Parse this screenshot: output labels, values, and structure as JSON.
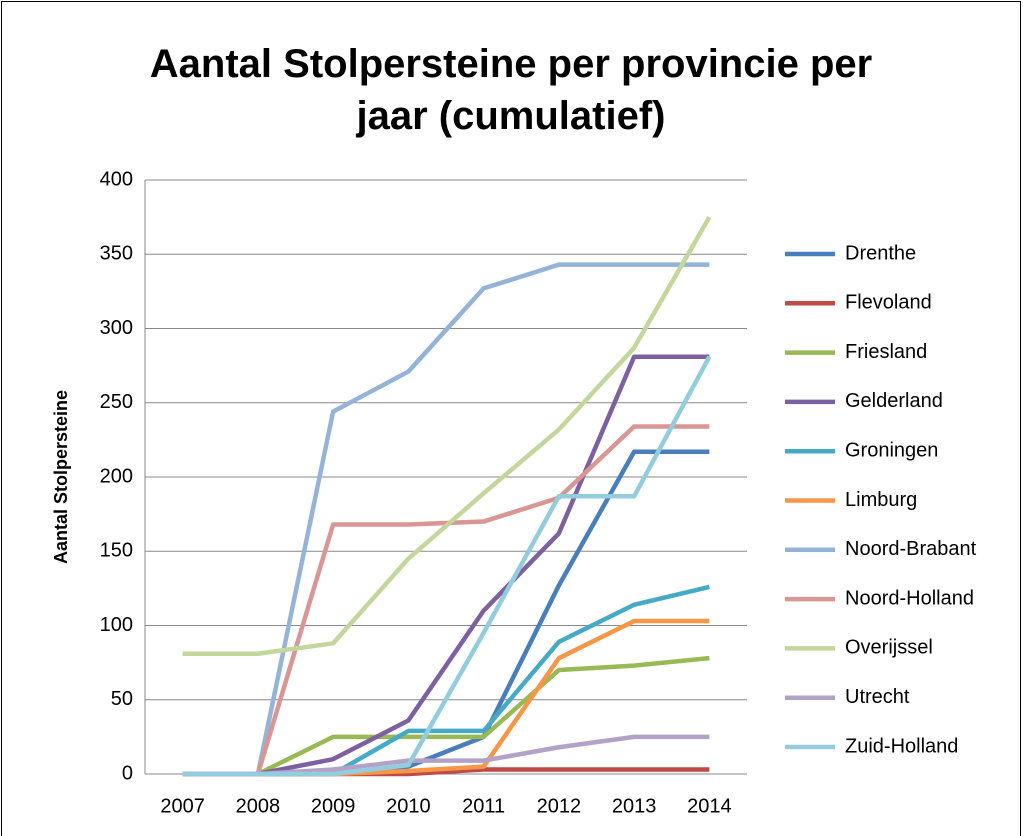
{
  "chart_data": {
    "type": "line",
    "title": "Aantal Stolpersteine per provincie per jaar (cumulatief)",
    "y_label": "Aantal Stolpersteine",
    "categories": [
      "2007",
      "2008",
      "2009",
      "2010",
      "2011",
      "2012",
      "2013",
      "2014"
    ],
    "ylim": [
      0,
      400
    ],
    "yticks": [
      0,
      50,
      100,
      150,
      200,
      250,
      300,
      350,
      400
    ],
    "grid": true,
    "legend": "right",
    "series": [
      {
        "name": "Drenthe",
        "color": "#4a7ebb",
        "values": [
          0,
          0,
          0,
          5,
          25,
          127,
          217,
          217
        ]
      },
      {
        "name": "Flevoland",
        "color": "#be4b48",
        "values": [
          0,
          0,
          0,
          0,
          3,
          3,
          3,
          3
        ]
      },
      {
        "name": "Friesland",
        "color": "#98b954",
        "values": [
          0,
          0,
          25,
          25,
          25,
          70,
          73,
          78
        ]
      },
      {
        "name": "Gelderland",
        "color": "#7d60a0",
        "values": [
          0,
          0,
          10,
          36,
          110,
          162,
          281,
          281
        ]
      },
      {
        "name": "Groningen",
        "color": "#46aac5",
        "values": [
          0,
          0,
          0,
          29,
          29,
          89,
          114,
          126
        ]
      },
      {
        "name": "Limburg",
        "color": "#f79646",
        "values": [
          0,
          0,
          0,
          2,
          5,
          78,
          103,
          103
        ]
      },
      {
        "name": "Noord-Brabant",
        "color": "#95b3d7",
        "values": [
          0,
          0,
          244,
          271,
          327,
          343,
          343,
          343
        ]
      },
      {
        "name": "Noord-Holland",
        "color": "#d99694",
        "values": [
          0,
          0,
          168,
          168,
          170,
          186,
          234,
          234
        ]
      },
      {
        "name": "Overijssel",
        "color": "#c3d69b",
        "values": [
          81,
          81,
          88,
          145,
          189,
          232,
          287,
          375
        ]
      },
      {
        "name": "Utrecht",
        "color": "#b3a2c7",
        "values": [
          0,
          0,
          3,
          9,
          9,
          18,
          25,
          25
        ]
      },
      {
        "name": "Zuid-Holland",
        "color": "#93cddd",
        "values": [
          0,
          0,
          0,
          6,
          95,
          187,
          187,
          281
        ]
      }
    ]
  }
}
